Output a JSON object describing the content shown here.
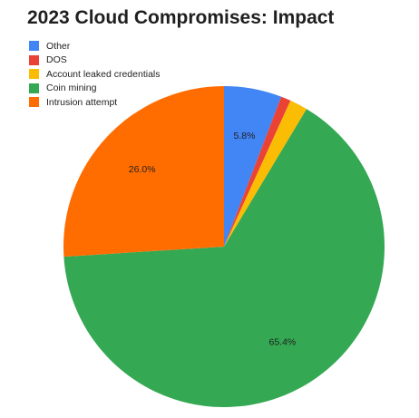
{
  "chart_data": {
    "type": "pie",
    "title": "2023 Cloud Compromises: Impact",
    "legend_position": "top-left",
    "slices": [
      {
        "label": "Other",
        "value": 5.8,
        "display": "5.8%",
        "color": "#4285f4"
      },
      {
        "label": "DOS",
        "value": 1.0,
        "display": "",
        "color": "#ea4335"
      },
      {
        "label": "Account leaked credentials",
        "value": 1.8,
        "display": "",
        "color": "#fbbc04"
      },
      {
        "label": "Coin mining",
        "value": 65.4,
        "display": "65.4%",
        "color": "#34a853"
      },
      {
        "label": "Intrusion attempt",
        "value": 26.0,
        "display": "26.0%",
        "color": "#ff6d01"
      }
    ]
  }
}
